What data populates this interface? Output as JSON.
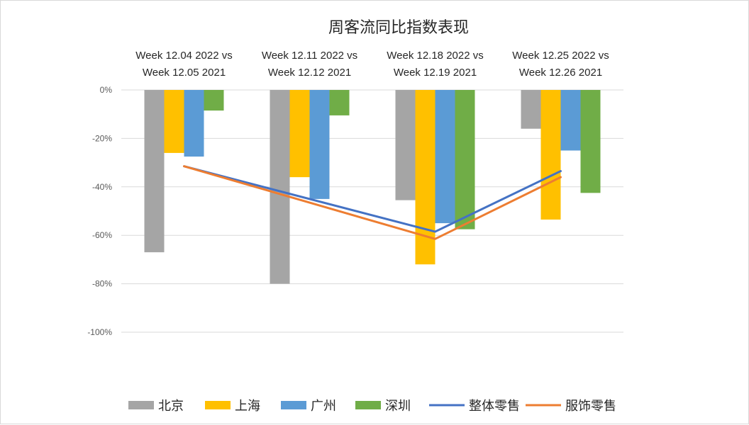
{
  "chart_data": {
    "type": "bar",
    "title": "周客流同比指数表现",
    "categories": [
      [
        "Week 12.04 2022  vs",
        "Week 12.05 2021"
      ],
      [
        "Week 12.11 2022  vs",
        "Week 12.12 2021"
      ],
      [
        "Week 12.18 2022  vs",
        "Week 12.19 2021"
      ],
      [
        "Week 12.25 2022  vs",
        "Week 12.26 2021"
      ]
    ],
    "ylim": [
      -100,
      0
    ],
    "yticks": [
      "0%",
      "-20%",
      "-40%",
      "-60%",
      "-80%",
      "-100%"
    ],
    "ytick_values": [
      0,
      -20,
      -40,
      -60,
      -80,
      -100
    ],
    "grid": true,
    "legend_position": "bottom",
    "bar_series": [
      {
        "name": "北京",
        "color": "#a5a5a5",
        "values": [
          -67,
          -80,
          -45.5,
          -16
        ]
      },
      {
        "name": "上海",
        "color": "#ffc000",
        "values": [
          -26,
          -36,
          -72,
          -53.5
        ]
      },
      {
        "name": "广州",
        "color": "#5b9bd5",
        "values": [
          -27.5,
          -45,
          -55,
          -25
        ]
      },
      {
        "name": "深圳",
        "color": "#70ad47",
        "values": [
          -8.5,
          -10.5,
          -57.5,
          -42.5
        ]
      }
    ],
    "line_series": [
      {
        "name": "整体零售",
        "color": "#4472c4",
        "values": [
          -31.5,
          null,
          -58.5,
          -33.5
        ]
      },
      {
        "name": "服饰零售",
        "color": "#ed7d31",
        "values": [
          -31.5,
          null,
          -61.5,
          -36
        ]
      }
    ]
  }
}
